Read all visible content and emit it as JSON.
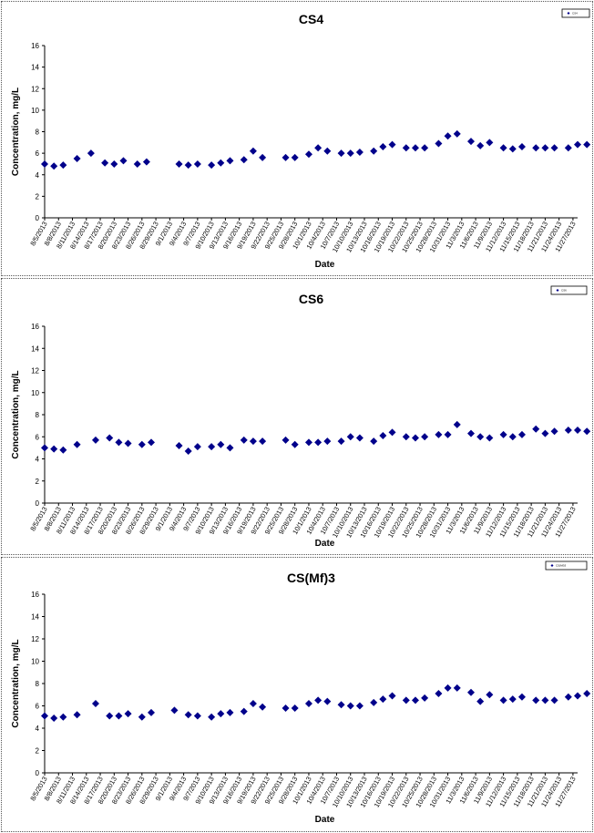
{
  "chart_data": [
    {
      "type": "scatter",
      "title": "CS4",
      "xlabel": "Date",
      "ylabel": "Concentration, mg/L",
      "ylim": [
        0,
        16
      ],
      "yticks": [
        0,
        2,
        4,
        6,
        8,
        10,
        12,
        14,
        16
      ],
      "xlim": [
        "2013-08-05",
        "2013-11-28"
      ],
      "xtick_labels": [
        "8/5/2013",
        "8/8/2013",
        "8/11/2013",
        "8/14/2013",
        "8/17/2013",
        "8/20/2013",
        "8/23/2013",
        "8/26/2013",
        "8/29/2013",
        "9/1/2013",
        "9/4/2013",
        "9/7/2013",
        "9/10/2013",
        "9/13/2013",
        "9/16/2013",
        "9/19/2013",
        "9/22/2013",
        "9/25/2013",
        "9/28/2013",
        "10/1/2013",
        "10/4/2013",
        "10/7/2013",
        "10/10/2013",
        "10/13/2013",
        "10/16/2013",
        "10/19/2013",
        "10/22/2013",
        "10/25/2013",
        "10/28/2013",
        "10/31/2013",
        "11/3/2013",
        "11/6/2013",
        "11/9/2013",
        "11/12/2013",
        "11/15/2013",
        "11/18/2013",
        "11/21/2013",
        "11/24/2013",
        "11/27/2013"
      ],
      "grid": false,
      "legend": "top-right",
      "marker_color": "#00008B",
      "series": [
        {
          "name": "CS4",
          "points": [
            [
              "2013-08-05",
              5.0
            ],
            [
              "2013-08-07",
              4.8
            ],
            [
              "2013-08-09",
              4.9
            ],
            [
              "2013-08-12",
              5.5
            ],
            [
              "2013-08-15",
              6.0
            ],
            [
              "2013-08-18",
              5.1
            ],
            [
              "2013-08-20",
              5.0
            ],
            [
              "2013-08-22",
              5.3
            ],
            [
              "2013-08-25",
              5.0
            ],
            [
              "2013-08-27",
              5.2
            ],
            [
              "2013-09-03",
              5.0
            ],
            [
              "2013-09-05",
              4.9
            ],
            [
              "2013-09-07",
              5.0
            ],
            [
              "2013-09-10",
              4.9
            ],
            [
              "2013-09-12",
              5.1
            ],
            [
              "2013-09-14",
              5.3
            ],
            [
              "2013-09-17",
              5.4
            ],
            [
              "2013-09-19",
              6.2
            ],
            [
              "2013-09-21",
              5.6
            ],
            [
              "2013-09-26",
              5.6
            ],
            [
              "2013-09-28",
              5.6
            ],
            [
              "2013-10-01",
              5.9
            ],
            [
              "2013-10-03",
              6.5
            ],
            [
              "2013-10-05",
              6.2
            ],
            [
              "2013-10-08",
              6.0
            ],
            [
              "2013-10-10",
              6.0
            ],
            [
              "2013-10-12",
              6.1
            ],
            [
              "2013-10-15",
              6.2
            ],
            [
              "2013-10-17",
              6.6
            ],
            [
              "2013-10-19",
              6.8
            ],
            [
              "2013-10-22",
              6.5
            ],
            [
              "2013-10-24",
              6.5
            ],
            [
              "2013-10-26",
              6.5
            ],
            [
              "2013-10-29",
              6.9
            ],
            [
              "2013-10-31",
              7.6
            ],
            [
              "2013-11-02",
              7.8
            ],
            [
              "2013-11-05",
              7.1
            ],
            [
              "2013-11-07",
              6.7
            ],
            [
              "2013-11-09",
              7.0
            ],
            [
              "2013-11-12",
              6.5
            ],
            [
              "2013-11-14",
              6.4
            ],
            [
              "2013-11-16",
              6.6
            ],
            [
              "2013-11-19",
              6.5
            ],
            [
              "2013-11-21",
              6.5
            ],
            [
              "2013-11-23",
              6.5
            ],
            [
              "2013-11-26",
              6.5
            ],
            [
              "2013-11-28",
              6.8
            ],
            [
              "2013-11-30",
              6.8
            ]
          ]
        }
      ]
    },
    {
      "type": "scatter",
      "title": "CS6",
      "xlabel": "Date",
      "ylabel": "Concentration, mg/L",
      "ylim": [
        0,
        16
      ],
      "yticks": [
        0,
        2,
        4,
        6,
        8,
        10,
        12,
        14,
        16
      ],
      "xlim": [
        "2013-08-05",
        "2013-11-28"
      ],
      "xtick_labels": [
        "8/5/2013",
        "8/8/2013",
        "8/11/2013",
        "8/14/2013",
        "8/17/2013",
        "8/20/2013",
        "8/23/2013",
        "8/26/2013",
        "8/29/2013",
        "9/1/2013",
        "9/4/2013",
        "9/7/2013",
        "9/10/2013",
        "9/13/2013",
        "9/16/2013",
        "9/19/2013",
        "9/22/2013",
        "9/25/2013",
        "9/28/2013",
        "10/1/2013",
        "10/4/2013",
        "10/7/2013",
        "10/10/2013",
        "10/13/2013",
        "10/16/2013",
        "10/19/2013",
        "10/22/2013",
        "10/25/2013",
        "10/28/2013",
        "10/31/2013",
        "11/3/2013",
        "11/6/2013",
        "11/9/2013",
        "11/12/2013",
        "11/15/2013",
        "11/18/2013",
        "11/21/2013",
        "11/24/2013",
        "11/27/2013"
      ],
      "grid": false,
      "legend": "top-right",
      "marker_color": "#00008B",
      "series": [
        {
          "name": "CS6",
          "points": [
            [
              "2013-08-05",
              5.0
            ],
            [
              "2013-08-07",
              4.9
            ],
            [
              "2013-08-09",
              4.8
            ],
            [
              "2013-08-12",
              5.3
            ],
            [
              "2013-08-16",
              5.7
            ],
            [
              "2013-08-19",
              5.9
            ],
            [
              "2013-08-21",
              5.5
            ],
            [
              "2013-08-23",
              5.4
            ],
            [
              "2013-08-26",
              5.3
            ],
            [
              "2013-08-28",
              5.5
            ],
            [
              "2013-09-03",
              5.2
            ],
            [
              "2013-09-05",
              4.7
            ],
            [
              "2013-09-07",
              5.1
            ],
            [
              "2013-09-10",
              5.1
            ],
            [
              "2013-09-12",
              5.3
            ],
            [
              "2013-09-14",
              5.0
            ],
            [
              "2013-09-17",
              5.7
            ],
            [
              "2013-09-19",
              5.6
            ],
            [
              "2013-09-21",
              5.6
            ],
            [
              "2013-09-26",
              5.7
            ],
            [
              "2013-09-28",
              5.3
            ],
            [
              "2013-10-01",
              5.5
            ],
            [
              "2013-10-03",
              5.5
            ],
            [
              "2013-10-05",
              5.6
            ],
            [
              "2013-10-08",
              5.6
            ],
            [
              "2013-10-10",
              6.0
            ],
            [
              "2013-10-12",
              5.9
            ],
            [
              "2013-10-15",
              5.6
            ],
            [
              "2013-10-17",
              6.1
            ],
            [
              "2013-10-19",
              6.4
            ],
            [
              "2013-10-22",
              6.0
            ],
            [
              "2013-10-24",
              5.9
            ],
            [
              "2013-10-26",
              6.0
            ],
            [
              "2013-10-29",
              6.2
            ],
            [
              "2013-10-31",
              6.2
            ],
            [
              "2013-11-02",
              7.1
            ],
            [
              "2013-11-05",
              6.3
            ],
            [
              "2013-11-07",
              6.0
            ],
            [
              "2013-11-09",
              5.9
            ],
            [
              "2013-11-12",
              6.2
            ],
            [
              "2013-11-14",
              6.0
            ],
            [
              "2013-11-16",
              6.2
            ],
            [
              "2013-11-19",
              6.7
            ],
            [
              "2013-11-21",
              6.3
            ],
            [
              "2013-11-23",
              6.5
            ],
            [
              "2013-11-26",
              6.6
            ],
            [
              "2013-11-28",
              6.6
            ],
            [
              "2013-11-30",
              6.5
            ]
          ]
        }
      ]
    },
    {
      "type": "scatter",
      "title": "CS(Mf)3",
      "xlabel": "Date",
      "ylabel": "Concentration, mg/L",
      "ylim": [
        0,
        16
      ],
      "yticks": [
        0,
        2,
        4,
        6,
        8,
        10,
        12,
        14,
        16
      ],
      "xlim": [
        "2013-08-05",
        "2013-11-28"
      ],
      "xtick_labels": [
        "8/5/2013",
        "8/8/2013",
        "8/11/2013",
        "8/14/2013",
        "8/17/2013",
        "8/20/2013",
        "8/23/2013",
        "8/26/2013",
        "8/29/2013",
        "9/1/2013",
        "9/4/2013",
        "9/7/2013",
        "9/10/2013",
        "9/13/2013",
        "9/16/2013",
        "9/19/2013",
        "9/22/2013",
        "9/25/2013",
        "9/28/2013",
        "10/1/2013",
        "10/4/2013",
        "10/7/2013",
        "10/10/2013",
        "10/13/2013",
        "10/16/2013",
        "10/19/2013",
        "10/22/2013",
        "10/25/2013",
        "10/28/2013",
        "10/31/2013",
        "11/3/2013",
        "11/6/2013",
        "11/9/2013",
        "11/12/2013",
        "11/15/2013",
        "11/18/2013",
        "11/21/2013",
        "11/24/2013",
        "11/27/2013"
      ],
      "grid": false,
      "legend": "top-right",
      "marker_color": "#00008B",
      "series": [
        {
          "name": "CS(Mf)3",
          "points": [
            [
              "2013-08-05",
              5.1
            ],
            [
              "2013-08-07",
              4.9
            ],
            [
              "2013-08-09",
              5.0
            ],
            [
              "2013-08-12",
              5.2
            ],
            [
              "2013-08-16",
              6.2
            ],
            [
              "2013-08-19",
              5.1
            ],
            [
              "2013-08-21",
              5.1
            ],
            [
              "2013-08-23",
              5.3
            ],
            [
              "2013-08-26",
              5.0
            ],
            [
              "2013-08-28",
              5.4
            ],
            [
              "2013-09-02",
              5.6
            ],
            [
              "2013-09-05",
              5.2
            ],
            [
              "2013-09-07",
              5.1
            ],
            [
              "2013-09-10",
              5.0
            ],
            [
              "2013-09-12",
              5.3
            ],
            [
              "2013-09-14",
              5.4
            ],
            [
              "2013-09-17",
              5.5
            ],
            [
              "2013-09-19",
              6.2
            ],
            [
              "2013-09-21",
              5.9
            ],
            [
              "2013-09-26",
              5.8
            ],
            [
              "2013-09-28",
              5.8
            ],
            [
              "2013-10-01",
              6.2
            ],
            [
              "2013-10-03",
              6.5
            ],
            [
              "2013-10-05",
              6.4
            ],
            [
              "2013-10-08",
              6.1
            ],
            [
              "2013-10-10",
              6.0
            ],
            [
              "2013-10-12",
              6.0
            ],
            [
              "2013-10-15",
              6.3
            ],
            [
              "2013-10-17",
              6.6
            ],
            [
              "2013-10-19",
              6.9
            ],
            [
              "2013-10-22",
              6.5
            ],
            [
              "2013-10-24",
              6.5
            ],
            [
              "2013-10-26",
              6.7
            ],
            [
              "2013-10-29",
              7.1
            ],
            [
              "2013-10-31",
              7.6
            ],
            [
              "2013-11-02",
              7.6
            ],
            [
              "2013-11-05",
              7.2
            ],
            [
              "2013-11-07",
              6.4
            ],
            [
              "2013-11-09",
              7.0
            ],
            [
              "2013-11-12",
              6.5
            ],
            [
              "2013-11-14",
              6.6
            ],
            [
              "2013-11-16",
              6.8
            ],
            [
              "2013-11-19",
              6.5
            ],
            [
              "2013-11-21",
              6.5
            ],
            [
              "2013-11-23",
              6.5
            ],
            [
              "2013-11-26",
              6.8
            ],
            [
              "2013-11-28",
              6.9
            ],
            [
              "2013-11-30",
              7.1
            ]
          ]
        }
      ]
    }
  ]
}
